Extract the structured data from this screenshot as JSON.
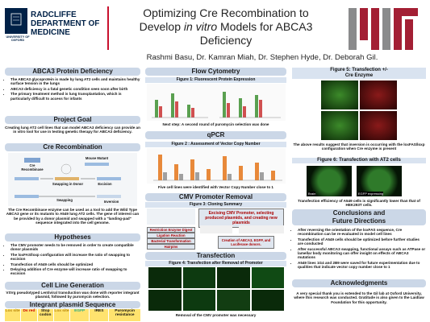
{
  "header": {
    "university": "UNIVERSITY OF OXFORD",
    "department": [
      "RADCLIFFE",
      "DEPARTMENT OF",
      "MEDICINE"
    ],
    "title_line1": "Optimizing Cre Recombination to",
    "title_line2_prefix": "Develop",
    "title_italic": "in vitro",
    "title_line2_suffix": "Models for ABCA3",
    "title_line3": "Deficiency",
    "authors": "Rashmi Basu, Dr. Kamran Miah, Dr. Stephen Hyde, Dr. Deborah Gil."
  },
  "left": {
    "abca3": {
      "heading": "ABCA3 Protein Deficiency",
      "bullets": [
        "The ABCA3 glycoprotein is made by lung AT2 cells and maintains healthy surface tension in the lungs",
        "ABCA3 deficiency is a fatal genetic condition seen soon after birth",
        "The primary treatment method is lung transplantation, which is particularly difficult to access for infants"
      ]
    },
    "goal": {
      "heading": "Project Goal",
      "text": "Creating lung AT2 cell lines that can model ABCA3 deficiency can provide an in vitro tool for use in testing genetic therapy for ABCA3 deficiency."
    },
    "cre": {
      "heading": "Cre Recombination",
      "diagram": [
        "Cre Recombinase",
        "Mouse Mutant",
        "Swapping in Donor",
        "Excision",
        "Swapping",
        "Inversion"
      ],
      "caption": "The Cre Recombinase enzyme can be used as a tool to add the Wild Type ABCA3 gene or its mutants to A549 lung AT2 cells. The gene of interest can be provided by a donor plasmid and swapped with a \"landing-pad\" sequence integrated into the cell genome."
    },
    "hypotheses": {
      "heading": "Hypotheses",
      "bullets": [
        "The CMV promoter needs to be removed in order to create compatible donor plasmids",
        "The loxFAS/loxp configuration will increase the ratio of swapping to excision",
        "Transfection of A549 cells should be optimized",
        "Delaying addition of Cre enzyme will increase ratio of swapping to excision"
      ]
    },
    "cellline": {
      "heading": "Cell Line Generation",
      "text": "VSVg pseudotyped Lentiviral transduction was done with reporter integrant plasmid, followed by puromycin selection."
    },
    "integrant": {
      "heading": "Integrant plasmid Sequence",
      "cells": [
        "Lox site",
        "Ds red",
        "Stop codon",
        "Lox site",
        "EGFP",
        "IRES",
        "Puromycin resistance"
      ]
    }
  },
  "middle": {
    "flow": {
      "heading": "Flow Cytometry",
      "figure": "Figure 1: Fluorescent Protein Expression",
      "caption": "Next step: A second round of puromycin selection was done"
    },
    "qpcr": {
      "heading": "qPCR",
      "figure": "Figure 2 : Assessment of Vector Copy Number",
      "caption": "Five cell lines were identified with Vector Copy Number close to 1"
    },
    "cmv": {
      "heading": "CMV Promoter Removal",
      "figure": "Figure 3: Cloning Summary",
      "steps": [
        "Restriction Enzyme Digest",
        "Ligation Reaction",
        "Bacterial Transformation",
        "Hairpins"
      ],
      "summary": "Excising CMV Promoter, selecting produced plasmids, and creating new plasmids",
      "result": "Creation of ABCA3, EGFP, and Luciferase donors."
    },
    "transfection": {
      "heading": "Transfection",
      "figure": "Figure 4: Transfection after Removal of Promoter",
      "caption": "Removal of the CMV promoter was necessary"
    }
  },
  "right": {
    "fig5": {
      "figure_line1": "Figure 5: Transfection +/-",
      "figure_line2": "Cre Enzyme",
      "text": "The above results suggest that inversion is occurring with the loxFAS/loxp configuration when Cre enzyme is present"
    },
    "fig6": {
      "figure": "Figure 6: Transfection with AT2 cells",
      "labels": [
        "Brain",
        "EGFP expressing"
      ],
      "text": "Transfection efficiency of A549 cells is significantly lower than that of HEK293T cells."
    },
    "conclusions": {
      "heading_line1": "Conclusions and",
      "heading_line2": "Future Directions",
      "bullets": [
        "After reversing the orientation of the loxFAS sequence, Cre recombination can be re-evaluated in model cell lines",
        "Transfection of A549 cells should be optimized before further studies are conducted",
        "After successful ABCA3 swapping, functional assays such as ATPase or lamellar body monitoring can offer insight on effects of ABCA3 mutations",
        "A549 lines 1G4 and 2B9 were saved for future experimentation due to qualities that indicate vector copy number close to 1"
      ]
    },
    "ack": {
      "heading": "Acknowledgments",
      "text": "A very special thank you is extended to the Gil lab at Oxford University, where this research was conducted. Gratitude is also given to the Laidlaw Foundation for this opportunity."
    }
  }
}
